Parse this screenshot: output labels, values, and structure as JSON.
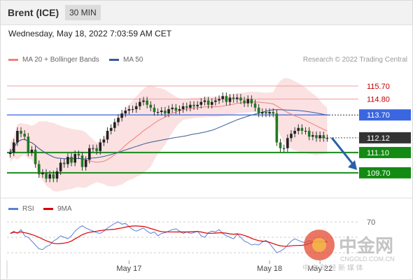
{
  "header": {
    "instrument": "Brent (ICE)",
    "timeframe": "30 MIN"
  },
  "timestamp": "Wednesday, May 18, 2022 7:03:59 AM CET",
  "legend": {
    "ma20": {
      "label": "MA 20 + Bollinger Bands",
      "color": "#f08080"
    },
    "ma50": {
      "label": "MA 50",
      "color": "#3a5a9a"
    },
    "credit": "Research © 2022 Trading Central"
  },
  "rsi_legend": {
    "rsi": {
      "label": "RSI",
      "color": "#5b7fd6"
    },
    "ma9": {
      "label": "9MA",
      "color": "#dd0000"
    }
  },
  "watermark": {
    "name": "中金网",
    "url": "CNGOLD.COM.CN",
    "tagline": "中 文 财 经 新 媒 体"
  },
  "chart_data": {
    "type": "candlestick",
    "ylim": [
      108.0,
      117.0
    ],
    "x_tick_labels": [
      {
        "label": "May 17",
        "bar": 33
      },
      {
        "label": "May 18",
        "bar": 72
      },
      {
        "label": "May 22",
        "bar": 86
      }
    ],
    "levels": [
      {
        "label": "115.70",
        "value": 115.7,
        "kind": "resistance",
        "color": "#f0a0a0"
      },
      {
        "label": "114.80",
        "value": 114.8,
        "kind": "resistance",
        "color": "#f0a0a0"
      },
      {
        "label": "113.70",
        "value": 113.7,
        "kind": "pivot",
        "color": "#4a6fe0"
      },
      {
        "label": "112.12",
        "value": 112.12,
        "kind": "last",
        "color": "#333333"
      },
      {
        "label": "111.10",
        "value": 111.1,
        "kind": "support",
        "color": "#1a8a1a"
      },
      {
        "label": "109.70",
        "value": 109.7,
        "kind": "support",
        "color": "#1a8a1a"
      }
    ],
    "forecast": {
      "from": 112.12,
      "to": 109.7
    },
    "close": [
      111.1,
      111.8,
      112.6,
      112.4,
      112.2,
      111.1,
      111.3,
      110.3,
      109.6,
      109.7,
      109.3,
      109.6,
      109.3,
      109.8,
      110.4,
      110.3,
      110.8,
      110.4,
      111.0,
      110.9,
      110.1,
      110.6,
      111.4,
      111.4,
      111.2,
      111.8,
      112.0,
      112.6,
      112.8,
      113.2,
      113.5,
      113.8,
      114.0,
      114.1,
      114.1,
      114.3,
      114.6,
      114.7,
      114.4,
      114.2,
      113.9,
      113.9,
      114.0,
      113.8,
      114.1,
      114.2,
      114.0,
      114.1,
      114.3,
      114.2,
      114.4,
      114.3,
      114.4,
      114.6,
      114.7,
      114.4,
      114.6,
      114.7,
      114.8,
      115.0,
      114.6,
      114.9,
      114.8,
      114.9,
      114.7,
      114.5,
      114.8,
      114.5,
      114.2,
      113.8,
      113.9,
      113.8,
      113.9,
      113.8,
      111.8,
      111.4,
      111.4,
      112.1,
      112.4,
      112.6,
      112.8,
      112.6,
      112.6,
      112.2,
      112.3,
      112.1,
      112.3,
      112.1,
      112.1
    ],
    "rsi": [
      55,
      58,
      55,
      60,
      52,
      50,
      45,
      40,
      35,
      34,
      38,
      40,
      45,
      48,
      52,
      50,
      48,
      52,
      58,
      62,
      65,
      62,
      60,
      58,
      56,
      55,
      58,
      62,
      65,
      68,
      70,
      67,
      68,
      64,
      60,
      58,
      60,
      62,
      58,
      55,
      57,
      52,
      55,
      56,
      58,
      60,
      61,
      58,
      55,
      57,
      55,
      56,
      58,
      52,
      50,
      56,
      58,
      57,
      60,
      55,
      52,
      50,
      48,
      54,
      50,
      45,
      43,
      40,
      41,
      40,
      44,
      46,
      42,
      36,
      30,
      32,
      35,
      40,
      45,
      48,
      46,
      44,
      43,
      46,
      44,
      45,
      44,
      43,
      44
    ],
    "rsi_levels": [
      70,
      50,
      30
    ],
    "rsi_tick_label": "70"
  }
}
